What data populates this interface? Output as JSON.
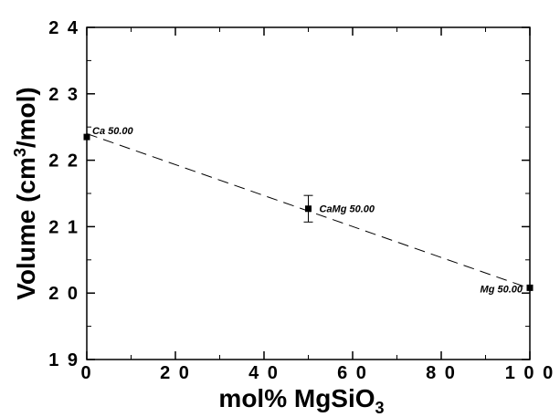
{
  "chart_data": {
    "type": "scatter",
    "xlabel_main": "mol% MgSiO",
    "xlabel_sub": "3",
    "ylabel_pre": "Volume (cm",
    "ylabel_sup": "3",
    "ylabel_post": "/mol)",
    "xlim": [
      0,
      100
    ],
    "ylim": [
      19,
      24
    ],
    "x_ticks": [
      {
        "value": 0,
        "label": "0"
      },
      {
        "value": 20,
        "label": "2 0"
      },
      {
        "value": 40,
        "label": "4 0"
      },
      {
        "value": 60,
        "label": "6 0"
      },
      {
        "value": 80,
        "label": "8 0"
      },
      {
        "value": 100,
        "label": "1 0 0"
      }
    ],
    "y_ticks": [
      {
        "value": 19,
        "label": "1 9"
      },
      {
        "value": 20,
        "label": "2 0"
      },
      {
        "value": 21,
        "label": "2 1"
      },
      {
        "value": 22,
        "label": "2 2"
      },
      {
        "value": 23,
        "label": "2 3"
      },
      {
        "value": 24,
        "label": "2 4"
      }
    ],
    "points": [
      {
        "x": 0,
        "y": 22.35,
        "label": "Ca 50.00",
        "err": 0
      },
      {
        "x": 50,
        "y": 21.27,
        "label": "CaMg 50.00",
        "err": 0.2
      },
      {
        "x": 100,
        "y": 20.08,
        "label": "Mg 50.00",
        "err": 0
      }
    ],
    "fit_line": {
      "x": [
        0,
        100
      ],
      "y": [
        22.4,
        20.07
      ],
      "style": "dashed"
    }
  }
}
